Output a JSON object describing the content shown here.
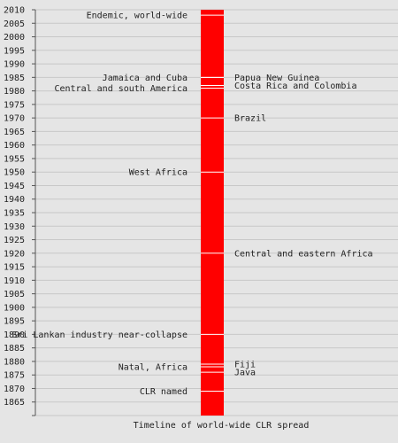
{
  "chart_data": {
    "type": "bar",
    "title": "",
    "xlabel": "Timeline of world-wide CLR spread",
    "ylabel": "",
    "ylim": [
      1860,
      2010
    ],
    "ytick_step": 5,
    "grid": true,
    "bar_color": "#ff0000",
    "background_color": "#e5e5e5",
    "grid_color": "#c8c8c8",
    "events_left": [
      {
        "year": 2008,
        "label": "Endemic, world-wide"
      },
      {
        "year": 1985,
        "label": "Jamaica and Cuba"
      },
      {
        "year": 1981,
        "label": "Central and south America"
      },
      {
        "year": 1950,
        "label": "West Africa"
      },
      {
        "year": 1890,
        "label": "Sri Lankan industry near-collapse"
      },
      {
        "year": 1878,
        "label": "Natal, Africa"
      },
      {
        "year": 1869,
        "label": "CLR named"
      }
    ],
    "events_right": [
      {
        "year": 1985,
        "label": "Papua New Guinea"
      },
      {
        "year": 1982,
        "label": "Costa Rica and Colombia"
      },
      {
        "year": 1970,
        "label": "Brazil"
      },
      {
        "year": 1920,
        "label": "Central and eastern Africa"
      },
      {
        "year": 1879,
        "label": "Fiji"
      },
      {
        "year": 1876,
        "label": "Java"
      }
    ]
  }
}
